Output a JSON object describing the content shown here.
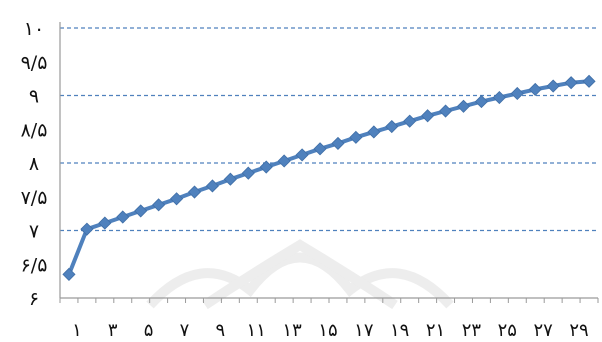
{
  "chart_data": {
    "type": "line",
    "title": "",
    "xlabel": "",
    "ylabel": "",
    "x": [
      1,
      2,
      3,
      4,
      5,
      6,
      7,
      8,
      9,
      10,
      11,
      12,
      13,
      14,
      15,
      16,
      17,
      18,
      19,
      20,
      21,
      22,
      23,
      24,
      25,
      26,
      27,
      28,
      29,
      30
    ],
    "series": [
      {
        "values": [
          6.35,
          7.02,
          7.11,
          7.2,
          7.29,
          7.38,
          7.47,
          7.57,
          7.66,
          7.76,
          7.85,
          7.94,
          8.03,
          8.12,
          8.21,
          8.29,
          8.38,
          8.46,
          8.54,
          8.62,
          8.7,
          8.77,
          8.84,
          8.91,
          8.97,
          9.03,
          9.09,
          9.14,
          9.19,
          9.21
        ],
        "color": "#4f81bd"
      }
    ],
    "ylim": [
      6,
      10
    ],
    "yticks": [
      {
        "value": 6,
        "label": "۶"
      },
      {
        "value": 6.5,
        "label": "۶/۵"
      },
      {
        "value": 7,
        "label": "۷"
      },
      {
        "value": 7.5,
        "label": "۷/۵"
      },
      {
        "value": 8,
        "label": "۸"
      },
      {
        "value": 8.5,
        "label": "۸/۵"
      },
      {
        "value": 9,
        "label": "۹"
      },
      {
        "value": 9.5,
        "label": "۹/۵"
      },
      {
        "value": 10,
        "label": "۱۰"
      }
    ],
    "xticks": [
      {
        "value": 2,
        "label": "۱"
      },
      {
        "value": 4,
        "label": "۳"
      },
      {
        "value": 6,
        "label": "۵"
      },
      {
        "value": 8,
        "label": "۷"
      },
      {
        "value": 10,
        "label": "۹"
      },
      {
        "value": 12,
        "label": "۱۱"
      },
      {
        "value": 14,
        "label": "۱۳"
      },
      {
        "value": 16,
        "label": "۱۵"
      },
      {
        "value": 18,
        "label": "۱۷"
      },
      {
        "value": 20,
        "label": "۱۹"
      },
      {
        "value": 22,
        "label": "۲۱"
      },
      {
        "value": 24,
        "label": "۲۳"
      },
      {
        "value": 26,
        "label": "۲۵"
      },
      {
        "value": 28,
        "label": "۲۷"
      },
      {
        "value": 30,
        "label": "۲۹"
      }
    ],
    "gridlines": [
      7,
      8,
      9,
      10
    ],
    "grid_color": "#4f81bd",
    "legend": "none"
  }
}
